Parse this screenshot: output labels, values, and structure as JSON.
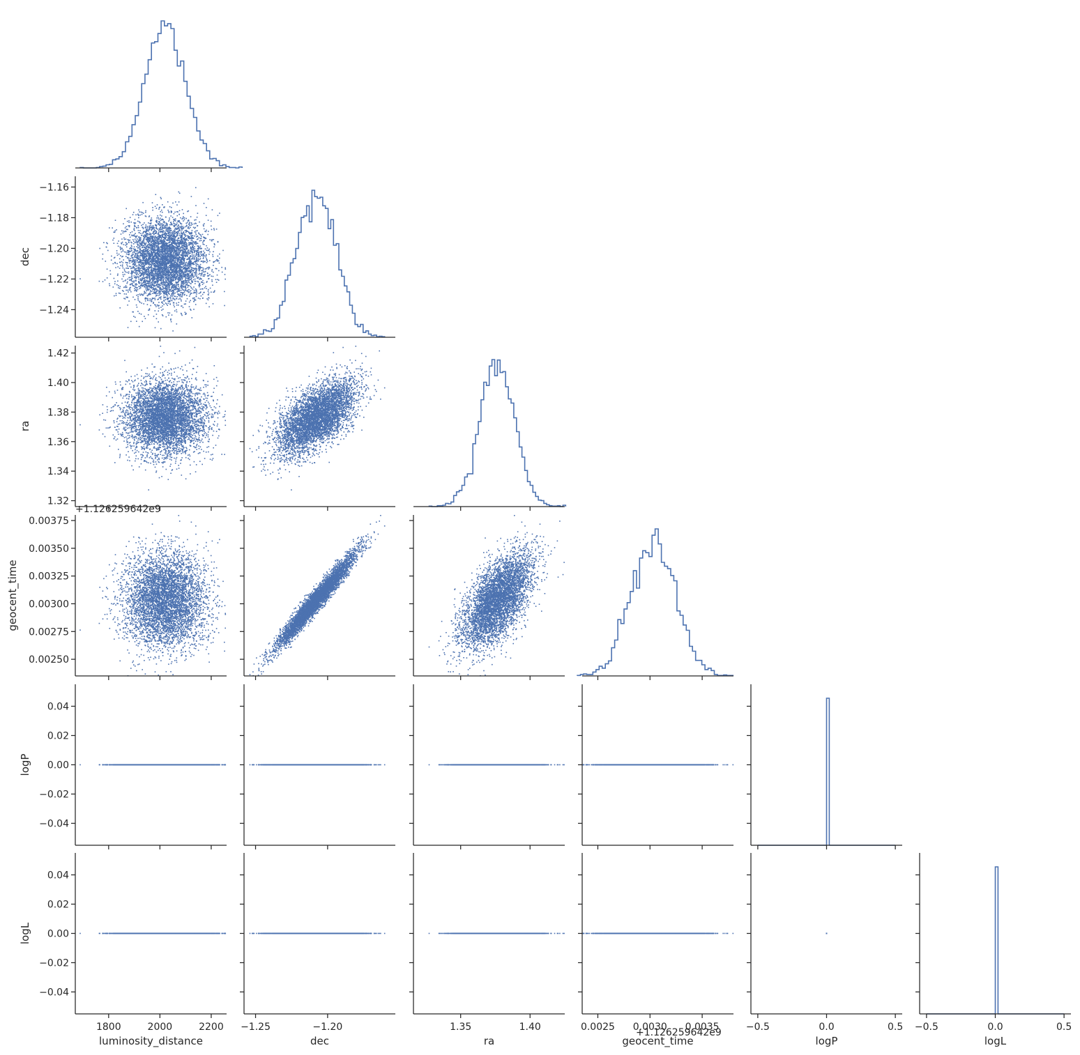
{
  "chart_data": {
    "type": "scatter",
    "title": "",
    "variables": [
      "luminosity_distance",
      "dec",
      "ra",
      "geocent_time",
      "logP",
      "logL"
    ],
    "axis_labels": {
      "x": [
        "luminosity_distance",
        "dec",
        "ra",
        "geocent_time",
        "logP",
        "logL"
      ],
      "y": [
        "",
        "dec",
        "ra",
        "geocent_time",
        "logP",
        "logL"
      ]
    },
    "offset_text": "+1.126259642e9",
    "offset_text_bottom": "+1.126259642e9",
    "ranges": {
      "luminosity_distance": [
        1670,
        2260
      ],
      "dec": [
        -1.258,
        -1.153
      ],
      "ra": [
        1.316,
        1.425
      ],
      "geocent_time": [
        0.00235,
        0.0038
      ],
      "logP": [
        -0.055,
        0.055
      ],
      "logL": [
        -0.055,
        0.055
      ]
    },
    "ticks": {
      "luminosity_distance": [
        "1800",
        "2000",
        "2200"
      ],
      "dec_x": [
        "−1.25",
        "−1.20"
      ],
      "dec_y": [
        "−1.16",
        "−1.18",
        "−1.20",
        "−1.22",
        "−1.24"
      ],
      "ra_x": [
        "1.35",
        "1.40"
      ],
      "ra_y": [
        "1.42",
        "1.40",
        "1.38",
        "1.36",
        "1.34",
        "1.32"
      ],
      "geocent_time_x": [
        "0.0025",
        "0.0030",
        "0.0035"
      ],
      "geocent_time_y": [
        "0.00375",
        "0.00350",
        "0.00325",
        "0.00300",
        "0.00275",
        "0.00250"
      ],
      "logP_x": [
        "−0.5",
        "0.0",
        "0.5"
      ],
      "logP_y": [
        "0.04",
        "0.02",
        "0.00",
        "−0.02",
        "−0.04"
      ],
      "logL_x": [
        "−0.5",
        "0.0",
        "0.5"
      ],
      "logL_y": [
        "0.04",
        "0.02",
        "0.00",
        "−0.02",
        "−0.04"
      ]
    },
    "stats": {
      "luminosity_distance": {
        "mean": 2020,
        "std": 80
      },
      "dec": {
        "mean": -1.208,
        "std": 0.0135
      },
      "ra": {
        "mean": 1.376,
        "std": 0.0125
      },
      "geocent_time": {
        "mean": 0.00303,
        "std": 0.00021
      },
      "logP": {
        "value": 0
      },
      "logL": {
        "value": 0
      }
    },
    "correlations": {
      "dec_ra": 0.6,
      "dec_geocent_time": 0.97,
      "ra_geocent_time": 0.6
    },
    "n_samples": 5000,
    "marker_color": "#4c72b0",
    "histtype": "step",
    "grid": false,
    "legend": "none"
  }
}
